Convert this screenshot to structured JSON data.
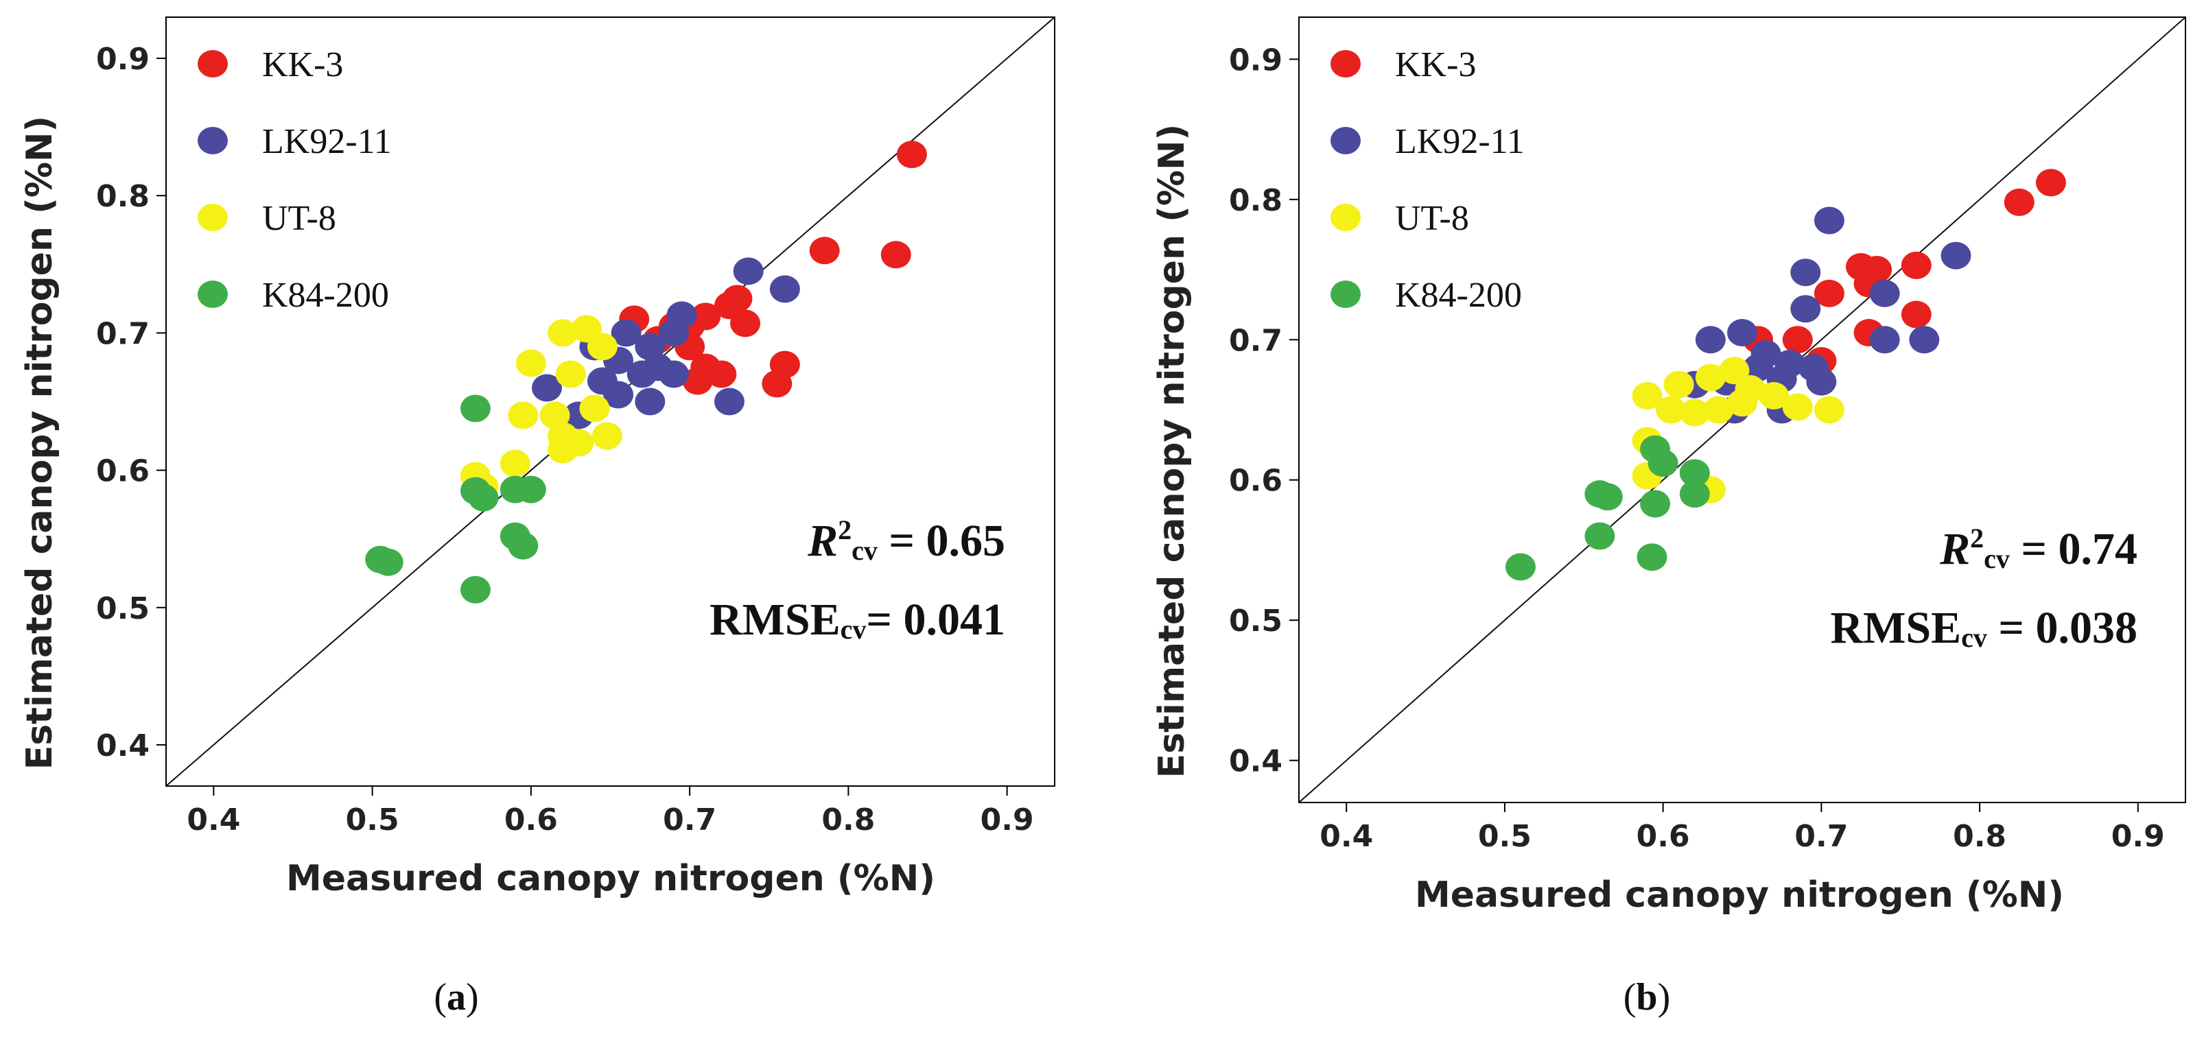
{
  "chart_data": [
    {
      "type": "scatter",
      "panel": "a",
      "caption": {
        "open": "(",
        "letter": "a",
        "close": ")"
      },
      "xlabel": "Measured canopy nitrogen (%N)",
      "ylabel": "Estimated canopy nitrogen (%N)",
      "xlim": [
        0.37,
        0.93
      ],
      "ylim": [
        0.37,
        0.93
      ],
      "xticks": [
        "0.4",
        "0.5",
        "0.6",
        "0.7",
        "0.8",
        "0.9"
      ],
      "yticks": [
        "0.4",
        "0.5",
        "0.6",
        "0.7",
        "0.8",
        "0.9"
      ],
      "reference_line": "1:1",
      "legend_position": "top-left",
      "stats": {
        "r2_label": "R",
        "r2_sup": "2",
        "r2_sub": "cv",
        "r2_value": " = 0.65",
        "rmse_label": "RMSE",
        "rmse_sub": "cv",
        "rmse_value": "= 0.041"
      },
      "series": [
        {
          "name": "KK-3",
          "color": "#e8201e",
          "points": [
            [
              0.84,
              0.83
            ],
            [
              0.785,
              0.76
            ],
            [
              0.83,
              0.757
            ],
            [
              0.725,
              0.72
            ],
            [
              0.73,
              0.725
            ],
            [
              0.735,
              0.707
            ],
            [
              0.71,
              0.712
            ],
            [
              0.7,
              0.705
            ],
            [
              0.665,
              0.71
            ],
            [
              0.68,
              0.695
            ],
            [
              0.69,
              0.705
            ],
            [
              0.7,
              0.69
            ],
            [
              0.71,
              0.675
            ],
            [
              0.705,
              0.665
            ],
            [
              0.76,
              0.677
            ],
            [
              0.755,
              0.663
            ],
            [
              0.72,
              0.67
            ]
          ]
        },
        {
          "name": "LK92-11",
          "color": "#4b4a9e",
          "points": [
            [
              0.737,
              0.745
            ],
            [
              0.76,
              0.732
            ],
            [
              0.695,
              0.713
            ],
            [
              0.69,
              0.7
            ],
            [
              0.66,
              0.7
            ],
            [
              0.675,
              0.69
            ],
            [
              0.68,
              0.675
            ],
            [
              0.67,
              0.67
            ],
            [
              0.69,
              0.67
            ],
            [
              0.655,
              0.68
            ],
            [
              0.645,
              0.665
            ],
            [
              0.655,
              0.655
            ],
            [
              0.64,
              0.69
            ],
            [
              0.61,
              0.66
            ],
            [
              0.675,
              0.65
            ],
            [
              0.725,
              0.65
            ],
            [
              0.63,
              0.64
            ]
          ]
        },
        {
          "name": "UT-8",
          "color": "#f5f016",
          "points": [
            [
              0.62,
              0.7
            ],
            [
              0.635,
              0.703
            ],
            [
              0.625,
              0.67
            ],
            [
              0.6,
              0.678
            ],
            [
              0.645,
              0.69
            ],
            [
              0.595,
              0.64
            ],
            [
              0.615,
              0.64
            ],
            [
              0.64,
              0.645
            ],
            [
              0.62,
              0.625
            ],
            [
              0.63,
              0.62
            ],
            [
              0.648,
              0.625
            ],
            [
              0.62,
              0.615
            ],
            [
              0.59,
              0.605
            ],
            [
              0.565,
              0.596
            ],
            [
              0.57,
              0.588
            ]
          ]
        },
        {
          "name": "K84-200",
          "color": "#3fae4a",
          "points": [
            [
              0.565,
              0.645
            ],
            [
              0.565,
              0.585
            ],
            [
              0.57,
              0.58
            ],
            [
              0.59,
              0.586
            ],
            [
              0.6,
              0.586
            ],
            [
              0.59,
              0.552
            ],
            [
              0.595,
              0.545
            ],
            [
              0.505,
              0.535
            ],
            [
              0.51,
              0.533
            ],
            [
              0.565,
              0.513
            ]
          ]
        }
      ]
    },
    {
      "type": "scatter",
      "panel": "b",
      "caption": {
        "open": "(",
        "letter": "b",
        "close": ")"
      },
      "xlabel": "Measured canopy nitrogen (%N)",
      "ylabel": "Estimated canopy nitrogen (%N)",
      "xlim": [
        0.37,
        0.93
      ],
      "ylim": [
        0.37,
        0.93
      ],
      "xticks": [
        "0.4",
        "0.5",
        "0.6",
        "0.7",
        "0.8",
        "0.9"
      ],
      "yticks": [
        "0.4",
        "0.5",
        "0.6",
        "0.7",
        "0.8",
        "0.9"
      ],
      "reference_line": "1:1",
      "legend_position": "top-left",
      "stats": {
        "r2_label": "R",
        "r2_sup": "2",
        "r2_sub": "cv",
        "r2_value": " = 0.74",
        "rmse_label": "RMSE",
        "rmse_sub": "cv",
        "rmse_value": " = 0.038"
      },
      "series": [
        {
          "name": "KK-3",
          "color": "#e8201e",
          "points": [
            [
              0.845,
              0.812
            ],
            [
              0.825,
              0.798
            ],
            [
              0.76,
              0.753
            ],
            [
              0.725,
              0.752
            ],
            [
              0.735,
              0.75
            ],
            [
              0.73,
              0.74
            ],
            [
              0.705,
              0.733
            ],
            [
              0.76,
              0.718
            ],
            [
              0.73,
              0.705
            ],
            [
              0.685,
              0.7
            ],
            [
              0.7,
              0.685
            ],
            [
              0.66,
              0.7
            ],
            [
              0.695,
              0.68
            ]
          ]
        },
        {
          "name": "LK92-11",
          "color": "#4b4a9e",
          "points": [
            [
              0.705,
              0.785
            ],
            [
              0.785,
              0.76
            ],
            [
              0.69,
              0.748
            ],
            [
              0.74,
              0.733
            ],
            [
              0.69,
              0.722
            ],
            [
              0.74,
              0.7
            ],
            [
              0.765,
              0.7
            ],
            [
              0.63,
              0.7
            ],
            [
              0.65,
              0.705
            ],
            [
              0.665,
              0.69
            ],
            [
              0.68,
              0.683
            ],
            [
              0.66,
              0.68
            ],
            [
              0.675,
              0.672
            ],
            [
              0.695,
              0.68
            ],
            [
              0.7,
              0.67
            ],
            [
              0.64,
              0.67
            ],
            [
              0.62,
              0.668
            ],
            [
              0.675,
              0.65
            ],
            [
              0.645,
              0.65
            ]
          ]
        },
        {
          "name": "UT-8",
          "color": "#f5f016",
          "points": [
            [
              0.59,
              0.66
            ],
            [
              0.61,
              0.668
            ],
            [
              0.63,
              0.673
            ],
            [
              0.645,
              0.678
            ],
            [
              0.655,
              0.665
            ],
            [
              0.605,
              0.65
            ],
            [
              0.62,
              0.648
            ],
            [
              0.635,
              0.65
            ],
            [
              0.65,
              0.655
            ],
            [
              0.67,
              0.66
            ],
            [
              0.685,
              0.652
            ],
            [
              0.705,
              0.65
            ],
            [
              0.59,
              0.628
            ],
            [
              0.63,
              0.593
            ],
            [
              0.59,
              0.603
            ]
          ]
        },
        {
          "name": "K84-200",
          "color": "#3fae4a",
          "points": [
            [
              0.595,
              0.622
            ],
            [
              0.6,
              0.612
            ],
            [
              0.62,
              0.605
            ],
            [
              0.62,
              0.59
            ],
            [
              0.56,
              0.59
            ],
            [
              0.565,
              0.588
            ],
            [
              0.595,
              0.583
            ],
            [
              0.56,
              0.56
            ],
            [
              0.593,
              0.545
            ],
            [
              0.51,
              0.538
            ]
          ]
        }
      ]
    }
  ]
}
